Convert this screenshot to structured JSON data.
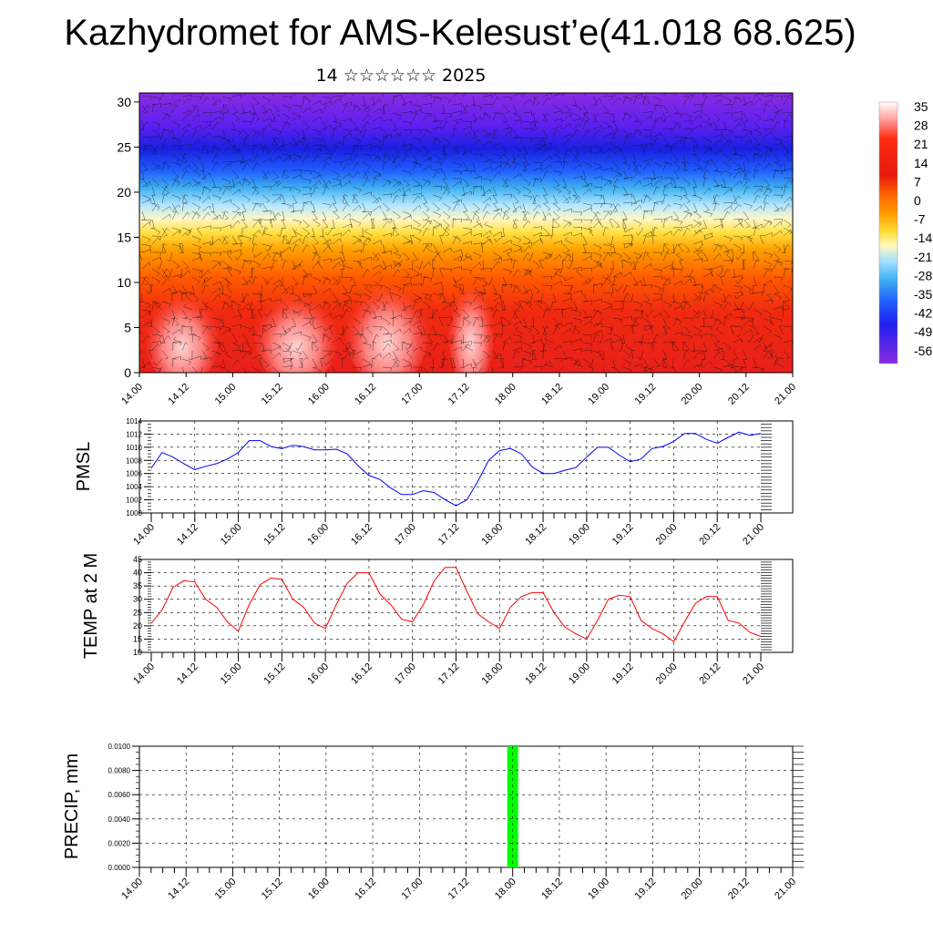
{
  "title": "Kazhydromet for AMS-Kelesust’e(41.018 68.625)",
  "subtitle": "14 ☆☆☆☆☆☆ 2025",
  "time_labels": [
    "14.00",
    "14.12",
    "15.00",
    "15.12",
    "16.00",
    "16.12",
    "17.00",
    "17.12",
    "18.00",
    "18.12",
    "19.00",
    "19.12",
    "20.00",
    "20.12",
    "21.00"
  ],
  "chart_data": [
    {
      "type": "heatmap",
      "name": "cross-section",
      "ylim": [
        0,
        31
      ],
      "y_ticks": [
        0,
        5,
        10,
        15,
        20,
        25,
        30
      ],
      "colorbar": {
        "labels": [
          "35",
          "28",
          "21",
          "14",
          "7",
          "0",
          "-7",
          "-14",
          "-21",
          "-28",
          "-35",
          "-42",
          "-49",
          "-56"
        ],
        "colors": [
          "#ffffff",
          "#ff9a9a",
          "#ff2a10",
          "#f03010",
          "#ff6a00",
          "#ffa000",
          "#ffe040",
          "#fff8c0",
          "#a0e0ff",
          "#40b0f0",
          "#2060ff",
          "#2020f0",
          "#5020f0",
          "#8a2be2"
        ]
      }
    },
    {
      "type": "line",
      "ylabel": "PMSL",
      "ylim": [
        1000,
        1014
      ],
      "y_tick_labels": [
        "1000",
        "1002",
        "1004",
        "1006",
        "1008",
        "1010",
        "1012",
        "1014"
      ],
      "color": "#0000ff",
      "x": [
        0,
        3,
        6,
        9,
        12,
        15,
        18,
        21,
        24,
        27,
        30,
        33,
        36,
        39,
        42,
        45,
        48,
        51,
        54,
        57,
        60,
        63,
        66,
        69,
        72,
        75,
        78,
        81,
        84,
        87,
        90,
        93,
        96,
        99,
        102,
        105,
        108,
        111,
        114,
        117,
        120,
        123,
        126,
        129,
        132,
        135,
        138,
        141,
        144,
        147,
        150,
        153,
        156,
        159,
        162,
        165,
        168
      ],
      "values": [
        1006.8,
        1009.2,
        1008.5,
        1007.5,
        1006.6,
        1007.1,
        1007.5,
        1008.2,
        1009.2,
        1011.0,
        1011.0,
        1010.1,
        1009.8,
        1010.3,
        1010.1,
        1009.6,
        1009.6,
        1009.7,
        1009.0,
        1007.2,
        1005.7,
        1005.1,
        1003.8,
        1002.8,
        1002.8,
        1003.4,
        1003.1,
        1002.0,
        1001.1,
        1002.0,
        1004.8,
        1008.0,
        1009.5,
        1009.8,
        1009.0,
        1007.0,
        1006.0,
        1006.0,
        1006.5,
        1006.9,
        1008.5,
        1010.0,
        1010.0,
        1008.8,
        1007.8,
        1008.2,
        1009.8,
        1010.1,
        1010.9,
        1012.1,
        1012.1,
        1011.2,
        1010.6,
        1011.5,
        1012.3,
        1011.8,
        1012.1
      ]
    },
    {
      "type": "line",
      "ylabel": "TEMP at 2 M",
      "ylim": [
        10,
        45
      ],
      "y_tick_labels": [
        "10",
        "15",
        "20",
        "25",
        "30",
        "35",
        "40",
        "45"
      ],
      "color": "#ff0000",
      "x": [
        0,
        3,
        6,
        9,
        12,
        15,
        18,
        21,
        24,
        27,
        30,
        33,
        36,
        39,
        42,
        45,
        48,
        51,
        54,
        57,
        60,
        63,
        66,
        69,
        72,
        75,
        78,
        81,
        84,
        87,
        90,
        93,
        96,
        99,
        102,
        105,
        108,
        111,
        114,
        117,
        120,
        123,
        126,
        129,
        132,
        135,
        138,
        141,
        144,
        147,
        150,
        153,
        156,
        159,
        162,
        165,
        168
      ],
      "values": [
        21.0,
        26.0,
        34.5,
        37.0,
        36.5,
        30.0,
        27.0,
        21.5,
        18.0,
        28.0,
        35.5,
        38.0,
        37.5,
        30.0,
        27.0,
        21.0,
        19.0,
        28.0,
        36.0,
        40.0,
        40.0,
        32.0,
        28.0,
        22.5,
        21.5,
        28.0,
        37.0,
        42.0,
        42.0,
        33.0,
        24.5,
        21.5,
        19.0,
        27.0,
        31.0,
        32.5,
        32.5,
        25.0,
        19.5,
        17.0,
        15.0,
        22.0,
        30.0,
        31.5,
        31.0,
        22.0,
        19.0,
        17.0,
        14.0,
        21.5,
        28.5,
        31.0,
        31.0,
        22.0,
        21.0,
        17.5,
        16.0
      ]
    },
    {
      "type": "bar",
      "ylabel": "PRECIP, mm",
      "ylim": [
        0,
        0.01
      ],
      "y_tick_labels": [
        "0.0000",
        "0.0020",
        "0.0040",
        "0.0060",
        "0.0080",
        "0.0100"
      ],
      "color": "#00ff00",
      "x": [
        96
      ],
      "values": [
        0.01
      ]
    }
  ]
}
